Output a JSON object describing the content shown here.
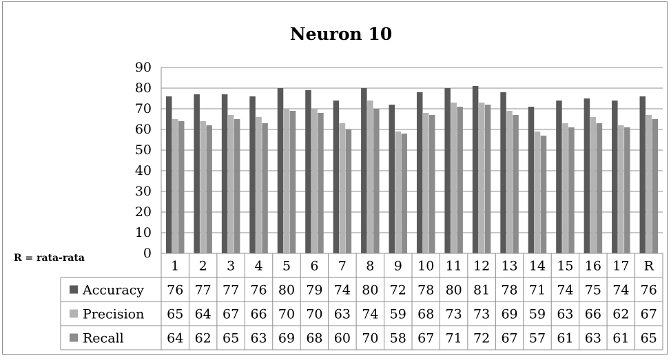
{
  "chart_data": {
    "type": "bar",
    "title": "Neuron 10",
    "categories": [
      "1",
      "2",
      "3",
      "4",
      "5",
      "6",
      "7",
      "8",
      "9",
      "10",
      "11",
      "12",
      "13",
      "14",
      "15",
      "16",
      "17",
      "R"
    ],
    "series": [
      {
        "name": "Accuracy",
        "color": "#595959",
        "values": [
          76,
          77,
          77,
          76,
          80,
          79,
          74,
          80,
          72,
          78,
          80,
          81,
          78,
          71,
          74,
          75,
          74,
          76
        ]
      },
      {
        "name": "Precision",
        "color": "#b3b3b3",
        "values": [
          65,
          64,
          67,
          66,
          70,
          70,
          63,
          74,
          59,
          68,
          73,
          73,
          69,
          59,
          63,
          66,
          62,
          67
        ]
      },
      {
        "name": "Recall",
        "color": "#8c8c8c",
        "values": [
          64,
          62,
          65,
          63,
          69,
          68,
          60,
          70,
          58,
          67,
          71,
          72,
          67,
          57,
          61,
          63,
          61,
          65
        ]
      }
    ],
    "yticks": [
      "0",
      "10",
      "20",
      "30",
      "40",
      "50",
      "60",
      "70",
      "80",
      "90"
    ],
    "ylim": [
      0,
      90
    ],
    "grid": true,
    "legend": "data-table-left",
    "note": "R = rata-rata"
  }
}
